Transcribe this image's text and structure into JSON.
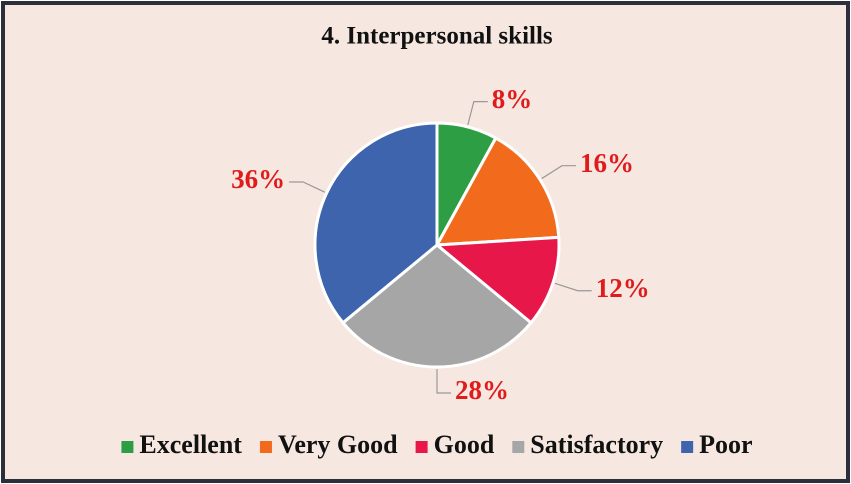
{
  "chart_data": {
    "type": "pie",
    "title": "4. Interpersonal skills",
    "categories": [
      "Excellent",
      "Very Good",
      "Good",
      "Satisfactory",
      "Poor"
    ],
    "values": [
      8,
      16,
      12,
      28,
      36
    ],
    "value_labels": [
      "8%",
      "16%",
      "12%",
      "28%",
      "36%"
    ],
    "colors": [
      "#2e9e44",
      "#f26b1d",
      "#e8174a",
      "#a6a6a6",
      "#3e64ad"
    ],
    "legend": "bottom"
  }
}
